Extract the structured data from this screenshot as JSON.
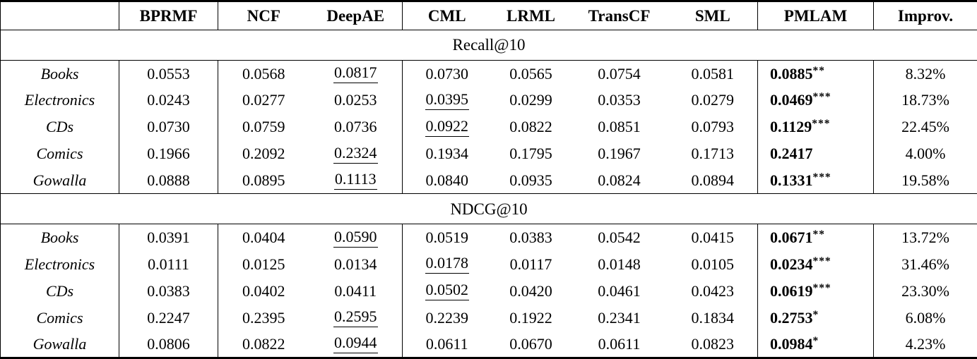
{
  "table": {
    "header": {
      "corner": "",
      "columns": [
        "BPRMF",
        "NCF",
        "DeepAE",
        "CML",
        "LRML",
        "TransCF",
        "SML",
        "PMLAM",
        "Improv."
      ]
    },
    "colors": {
      "text": "#000000",
      "border": "#000000",
      "background": "#ffffff"
    },
    "chart_data": {
      "type": "table",
      "metrics": [
        "Recall@10",
        "NDCG@10"
      ],
      "baseline_columns": [
        "BPRMF",
        "NCF",
        "DeepAE",
        "CML",
        "LRML",
        "TransCF",
        "SML"
      ],
      "note_styles": {
        "underline": "second best baseline",
        "bold": "PMLAM result",
        "stars": "significance markers"
      }
    },
    "sections": [
      {
        "title": "Recall@10",
        "rows": [
          {
            "dataset": "Books",
            "values": [
              "0.0553",
              "0.0568",
              "0.0817",
              "0.0730",
              "0.0565",
              "0.0754",
              "0.0581"
            ],
            "underline": 2,
            "pmlam": "0.0885",
            "stars": "**",
            "improv": "8.32%"
          },
          {
            "dataset": "Electronics",
            "values": [
              "0.0243",
              "0.0277",
              "0.0253",
              "0.0395",
              "0.0299",
              "0.0353",
              "0.0279"
            ],
            "underline": 3,
            "pmlam": "0.0469",
            "stars": "***",
            "improv": "18.73%"
          },
          {
            "dataset": "CDs",
            "values": [
              "0.0730",
              "0.0759",
              "0.0736",
              "0.0922",
              "0.0822",
              "0.0851",
              "0.0793"
            ],
            "underline": 3,
            "pmlam": "0.1129",
            "stars": "***",
            "improv": "22.45%"
          },
          {
            "dataset": "Comics",
            "values": [
              "0.1966",
              "0.2092",
              "0.2324",
              "0.1934",
              "0.1795",
              "0.1967",
              "0.1713"
            ],
            "underline": 2,
            "pmlam": "0.2417",
            "stars": "",
            "improv": "4.00%"
          },
          {
            "dataset": "Gowalla",
            "values": [
              "0.0888",
              "0.0895",
              "0.1113",
              "0.0840",
              "0.0935",
              "0.0824",
              "0.0894"
            ],
            "underline": 2,
            "pmlam": "0.1331",
            "stars": "***",
            "improv": "19.58%"
          }
        ]
      },
      {
        "title": "NDCG@10",
        "rows": [
          {
            "dataset": "Books",
            "values": [
              "0.0391",
              "0.0404",
              "0.0590",
              "0.0519",
              "0.0383",
              "0.0542",
              "0.0415"
            ],
            "underline": 2,
            "pmlam": "0.0671",
            "stars": "**",
            "improv": "13.72%"
          },
          {
            "dataset": "Electronics",
            "values": [
              "0.0111",
              "0.0125",
              "0.0134",
              "0.0178",
              "0.0117",
              "0.0148",
              "0.0105"
            ],
            "underline": 3,
            "pmlam": "0.0234",
            "stars": "***",
            "improv": "31.46%"
          },
          {
            "dataset": "CDs",
            "values": [
              "0.0383",
              "0.0402",
              "0.0411",
              "0.0502",
              "0.0420",
              "0.0461",
              "0.0423"
            ],
            "underline": 3,
            "pmlam": "0.0619",
            "stars": "***",
            "improv": "23.30%"
          },
          {
            "dataset": "Comics",
            "values": [
              "0.2247",
              "0.2395",
              "0.2595",
              "0.2239",
              "0.1922",
              "0.2341",
              "0.1834"
            ],
            "underline": 2,
            "pmlam": "0.2753",
            "stars": "*",
            "improv": "6.08%"
          },
          {
            "dataset": "Gowalla",
            "values": [
              "0.0806",
              "0.0822",
              "0.0944",
              "0.0611",
              "0.0670",
              "0.0611",
              "0.0823"
            ],
            "underline": 2,
            "pmlam": "0.0984",
            "stars": "*",
            "improv": "4.23%"
          }
        ]
      }
    ]
  }
}
